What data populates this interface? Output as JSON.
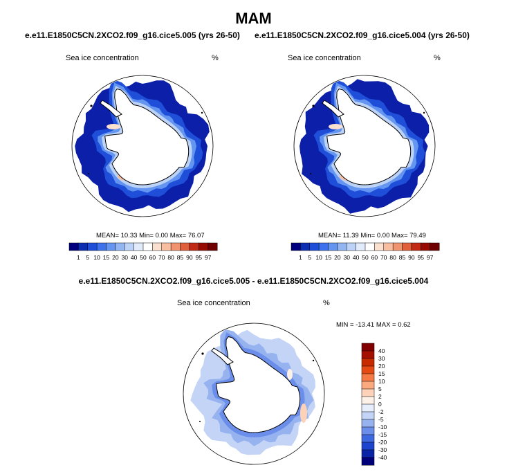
{
  "season_title": "MAM",
  "chart_data": [
    {
      "type": "heatmap",
      "projection": "south polar stereographic",
      "case": "e.e11.E1850C5CN.2XCO2.f09_g16.cice5.005 (yrs 26-50)",
      "variable": "Sea ice concentration",
      "units": "%",
      "stats": {
        "mean_label": "MEAN=",
        "mean": "10.33",
        "min_label": "Min=",
        "min": "0.00",
        "max_label": "Max=",
        "max": "76.07"
      },
      "colorbar": {
        "orientation": "horizontal",
        "levels": [
          "1",
          "5",
          "10",
          "15",
          "20",
          "30",
          "40",
          "50",
          "60",
          "70",
          "80",
          "85",
          "90",
          "95",
          "97"
        ],
        "colors": [
          "#00007f",
          "#0c2eb0",
          "#1f4fd8",
          "#3d72ec",
          "#6495f0",
          "#93b6f3",
          "#bcd2f7",
          "#e1ebfa",
          "#ffffff",
          "#fbe0cf",
          "#f7bea0",
          "#f09470",
          "#e0603c",
          "#c12a14",
          "#960c00",
          "#6e0000"
        ]
      }
    },
    {
      "type": "heatmap",
      "projection": "south polar stereographic",
      "case": "e.e11.E1850C5CN.2XCO2.f09_g16.cice5.004 (yrs 26-50)",
      "variable": "Sea ice concentration",
      "units": "%",
      "stats": {
        "mean_label": "MEAN=",
        "mean": "11.39",
        "min_label": "Min=",
        "min": "0.00",
        "max_label": "Max=",
        "max": "79.49"
      },
      "colorbar": {
        "orientation": "horizontal",
        "levels": [
          "1",
          "5",
          "10",
          "15",
          "20",
          "30",
          "40",
          "50",
          "60",
          "70",
          "80",
          "85",
          "90",
          "95",
          "97"
        ],
        "colors": [
          "#00007f",
          "#0c2eb0",
          "#1f4fd8",
          "#3d72ec",
          "#6495f0",
          "#93b6f3",
          "#bcd2f7",
          "#e1ebfa",
          "#ffffff",
          "#fbe0cf",
          "#f7bea0",
          "#f09470",
          "#e0603c",
          "#c12a14",
          "#960c00",
          "#6e0000"
        ]
      }
    },
    {
      "type": "heatmap",
      "projection": "south polar stereographic",
      "case": "e.e11.E1850C5CN.2XCO2.f09_g16.cice5.005 - e.e11.E1850C5CN.2XCO2.f09_g16.cice5.004",
      "variable": "Sea ice concentration",
      "units": "%",
      "stats": {
        "text": "MIN = -13.41 MAX =   0.62"
      },
      "colorbar": {
        "orientation": "vertical",
        "levels": [
          "40",
          "30",
          "20",
          "15",
          "10",
          "5",
          "2",
          "0",
          "-2",
          "-5",
          "-10",
          "-15",
          "-20",
          "-30",
          "-40"
        ],
        "colors": [
          "#820000",
          "#a50f00",
          "#c82a00",
          "#e64a14",
          "#f57a45",
          "#fbaa80",
          "#fdd2b8",
          "#fdf0e6",
          "#e6eefb",
          "#c3d4f7",
          "#96b3f0",
          "#6a8eea",
          "#3e68e0",
          "#1c44cc",
          "#0a24a8",
          "#00007a"
        ]
      }
    }
  ]
}
